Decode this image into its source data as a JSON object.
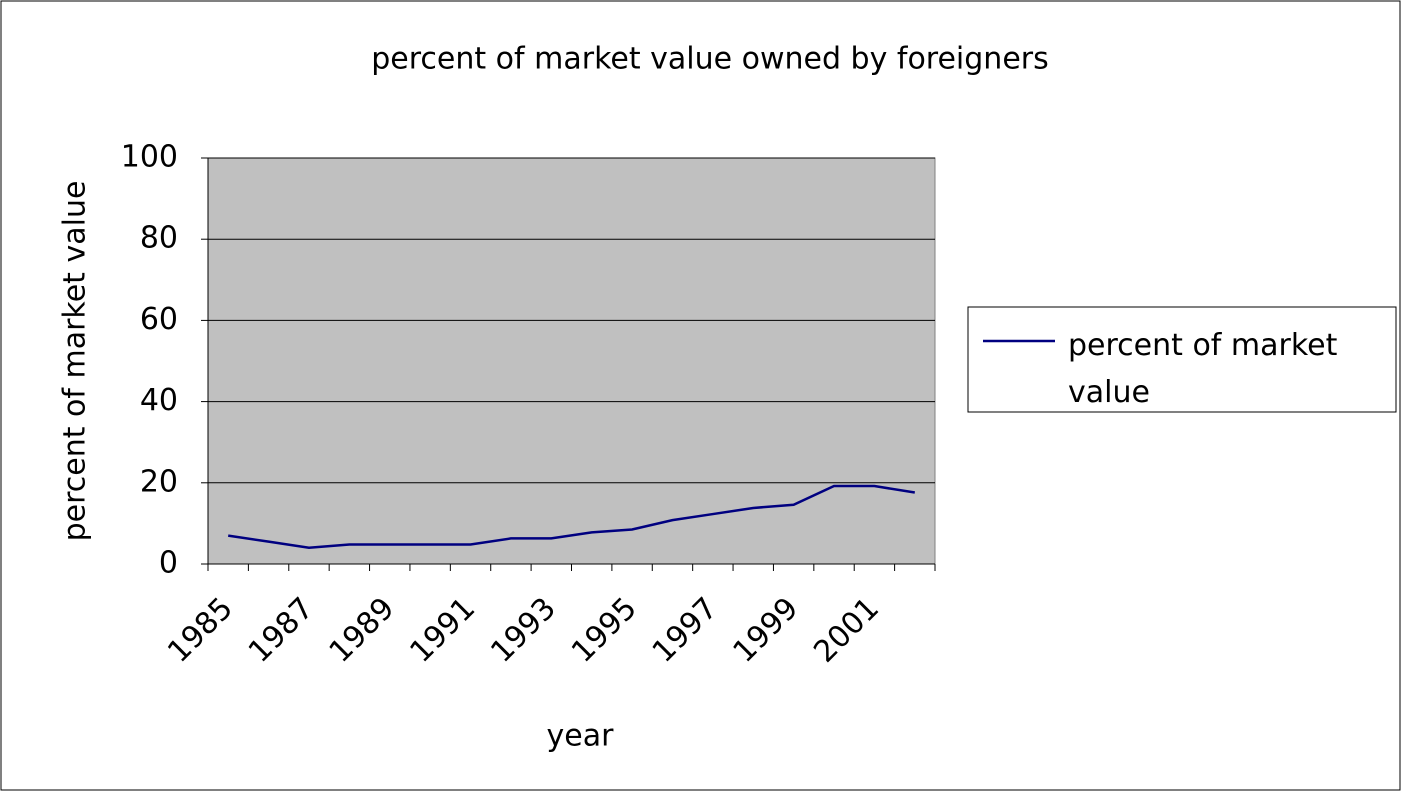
{
  "chart_data": {
    "type": "line",
    "title": "percent of market value owned by foreigners",
    "x_label": "year",
    "y_label": "percent of market value",
    "categories": [
      "1985",
      null,
      "1987",
      null,
      "1989",
      null,
      "1991",
      null,
      "1993",
      null,
      "1995",
      null,
      "1997",
      null,
      "1999",
      null,
      "2001",
      null
    ],
    "series": [
      {
        "name": "percent of market value",
        "color": "#000080",
        "values": [
          7,
          5.5,
          4,
          4.8,
          4.8,
          4.8,
          4.8,
          6.3,
          6.3,
          7.8,
          8.5,
          10.8,
          12.3,
          13.8,
          14.6,
          19.2,
          19.2,
          17.6
        ]
      }
    ],
    "ylim": [
      0,
      100
    ],
    "yticks": [
      0,
      20,
      40,
      60,
      80,
      100
    ],
    "grid": true,
    "plot_background": "#c0c0c0",
    "legend": "right"
  }
}
